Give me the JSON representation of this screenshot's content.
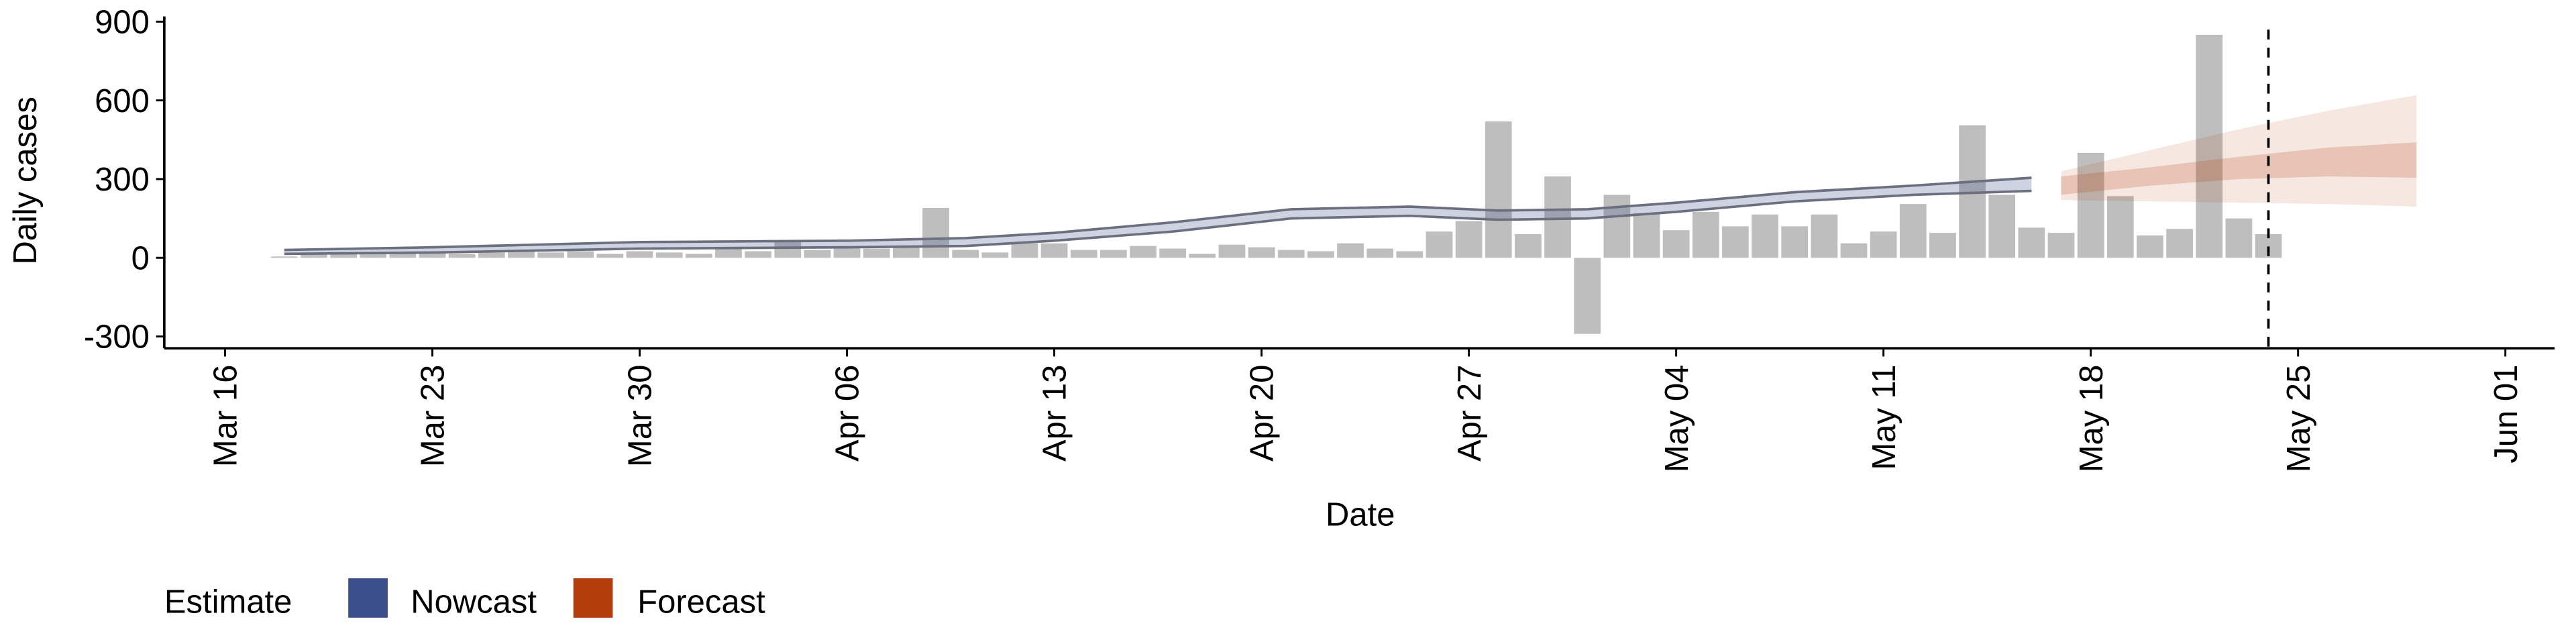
{
  "chart_data": {
    "type": "bar",
    "x_label": "Date",
    "y_label": "Daily cases",
    "xlim": [
      "Mar 16",
      "Jun 01"
    ],
    "xticks": [
      "Mar 16",
      "Mar 23",
      "Mar 30",
      "Apr 06",
      "Apr 13",
      "Apr 20",
      "Apr 27",
      "May 04",
      "May 11",
      "May 18",
      "May 25",
      "Jun 01"
    ],
    "ylim": [
      -345,
      920
    ],
    "yticks": [
      -300,
      0,
      300,
      600,
      900
    ],
    "bar_color": "#bebebe",
    "x": [
      "Mar 18",
      "Mar 19",
      "Mar 20",
      "Mar 21",
      "Mar 22",
      "Mar 23",
      "Mar 24",
      "Mar 25",
      "Mar 26",
      "Mar 27",
      "Mar 28",
      "Mar 29",
      "Mar 30",
      "Mar 31",
      "Apr 01",
      "Apr 02",
      "Apr 03",
      "Apr 04",
      "Apr 05",
      "Apr 06",
      "Apr 07",
      "Apr 08",
      "Apr 09",
      "Apr 10",
      "Apr 11",
      "Apr 12",
      "Apr 13",
      "Apr 14",
      "Apr 15",
      "Apr 16",
      "Apr 17",
      "Apr 18",
      "Apr 19",
      "Apr 20",
      "Apr 21",
      "Apr 22",
      "Apr 23",
      "Apr 24",
      "Apr 25",
      "Apr 26",
      "Apr 27",
      "Apr 28",
      "Apr 29",
      "Apr 30",
      "May 01",
      "May 02",
      "May 03",
      "May 04",
      "May 05",
      "May 06",
      "May 07",
      "May 08",
      "May 09",
      "May 10",
      "May 11",
      "May 12",
      "May 13",
      "May 14",
      "May 15",
      "May 16",
      "May 17",
      "May 18",
      "May 19",
      "May 20",
      "May 21",
      "May 22",
      "May 23",
      "May 24"
    ],
    "values": [
      5,
      15,
      20,
      15,
      20,
      20,
      15,
      20,
      25,
      20,
      25,
      15,
      25,
      20,
      15,
      40,
      25,
      60,
      30,
      40,
      35,
      40,
      190,
      30,
      20,
      55,
      55,
      30,
      30,
      45,
      35,
      15,
      50,
      40,
      30,
      25,
      55,
      35,
      25,
      100,
      140,
      520,
      90,
      310,
      -290,
      240,
      170,
      105,
      175,
      120,
      165,
      120,
      165,
      55,
      100,
      205,
      95,
      505,
      240,
      115,
      95,
      400,
      235,
      85,
      110,
      850,
      150,
      90
    ],
    "series": [
      {
        "name": "Nowcast",
        "color": "#3b4f8c",
        "line_color": "#6b6f80",
        "x": [
          "Mar 18",
          "Mar 23",
          "Mar 30",
          "Apr 06",
          "Apr 10",
          "Apr 13",
          "Apr 17",
          "Apr 21",
          "Apr 25",
          "Apr 28",
          "May 01",
          "May 04",
          "May 08",
          "May 12",
          "May 16"
        ],
        "lower": [
          15,
          20,
          35,
          40,
          45,
          65,
          100,
          150,
          160,
          145,
          150,
          175,
          215,
          240,
          255
        ],
        "upper": [
          30,
          40,
          60,
          65,
          75,
          95,
          135,
          185,
          195,
          180,
          185,
          210,
          250,
          275,
          305
        ]
      },
      {
        "name": "Forecast",
        "color": "#b33d0b",
        "x": [
          "May 17",
          "May 20",
          "May 23",
          "May 26",
          "May 29"
        ],
        "lower": [
          220,
          215,
          210,
          205,
          195
        ],
        "upper": [
          330,
          410,
          490,
          560,
          620
        ],
        "inner_lower": [
          240,
          275,
          300,
          310,
          305
        ],
        "inner_upper": [
          310,
          345,
          385,
          420,
          440
        ]
      }
    ],
    "vline": "May 24"
  }
}
